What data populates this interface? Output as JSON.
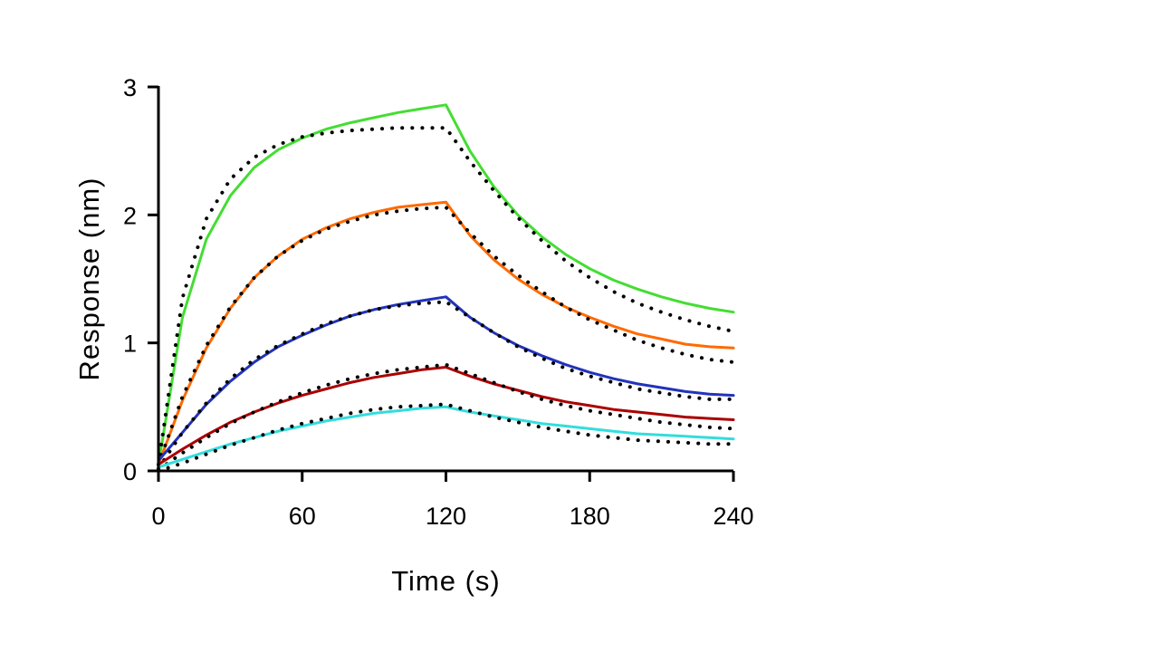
{
  "chart_data": {
    "type": "line",
    "title": "",
    "xlabel": "Time (s)",
    "ylabel": "Response (nm)",
    "xlim": [
      0,
      240
    ],
    "ylim": [
      0,
      3
    ],
    "xticks": [
      0,
      60,
      120,
      180,
      240
    ],
    "yticks": [
      0,
      1,
      2,
      3
    ],
    "xtick_labels": [
      "0",
      "60",
      "120",
      "180",
      "240"
    ],
    "ytick_labels": [
      "0",
      "1",
      "2",
      "3"
    ],
    "grid": false,
    "legend": "none",
    "x": [
      0,
      10,
      20,
      30,
      40,
      50,
      60,
      70,
      80,
      90,
      100,
      110,
      120,
      130,
      140,
      150,
      160,
      170,
      180,
      190,
      200,
      210,
      220,
      230,
      240
    ],
    "series": [
      {
        "color": "#44dd33",
        "style": "solid",
        "values": [
          0.05,
          1.2,
          1.81,
          2.15,
          2.37,
          2.51,
          2.6,
          2.67,
          2.72,
          2.76,
          2.8,
          2.83,
          2.86,
          2.5,
          2.22,
          2.0,
          1.83,
          1.69,
          1.58,
          1.49,
          1.42,
          1.36,
          1.31,
          1.27,
          1.24
        ]
      },
      {
        "color": "#000000",
        "style": "dotted",
        "values": [
          0.05,
          1.35,
          1.97,
          2.28,
          2.45,
          2.55,
          2.61,
          2.64,
          2.66,
          2.67,
          2.68,
          2.68,
          2.68,
          2.42,
          2.19,
          1.98,
          1.8,
          1.64,
          1.51,
          1.4,
          1.31,
          1.24,
          1.18,
          1.13,
          1.09
        ]
      },
      {
        "color": "#ff6a00",
        "style": "solid",
        "values": [
          0.05,
          0.55,
          0.96,
          1.27,
          1.51,
          1.68,
          1.81,
          1.9,
          1.97,
          2.02,
          2.06,
          2.08,
          2.1,
          1.84,
          1.65,
          1.5,
          1.38,
          1.28,
          1.2,
          1.13,
          1.07,
          1.03,
          0.99,
          0.97,
          0.96
        ]
      },
      {
        "color": "#000000",
        "style": "dotted",
        "values": [
          0.05,
          0.58,
          0.98,
          1.28,
          1.51,
          1.68,
          1.8,
          1.89,
          1.95,
          2.0,
          2.03,
          2.05,
          2.06,
          1.86,
          1.68,
          1.53,
          1.4,
          1.28,
          1.18,
          1.1,
          1.02,
          0.96,
          0.91,
          0.87,
          0.85
        ]
      },
      {
        "color": "#2233bb",
        "style": "solid",
        "values": [
          0.08,
          0.3,
          0.52,
          0.7,
          0.85,
          0.97,
          1.06,
          1.14,
          1.21,
          1.26,
          1.3,
          1.33,
          1.36,
          1.2,
          1.08,
          0.98,
          0.9,
          0.83,
          0.77,
          0.72,
          0.68,
          0.65,
          0.62,
          0.6,
          0.59
        ]
      },
      {
        "color": "#000000",
        "style": "dotted",
        "values": [
          0.02,
          0.3,
          0.53,
          0.72,
          0.87,
          0.98,
          1.07,
          1.15,
          1.21,
          1.26,
          1.29,
          1.31,
          1.32,
          1.2,
          1.08,
          0.97,
          0.88,
          0.8,
          0.74,
          0.69,
          0.64,
          0.61,
          0.58,
          0.56,
          0.56
        ]
      },
      {
        "color": "#aa0000",
        "style": "solid",
        "values": [
          0.05,
          0.17,
          0.28,
          0.38,
          0.46,
          0.53,
          0.59,
          0.64,
          0.69,
          0.73,
          0.76,
          0.79,
          0.81,
          0.74,
          0.68,
          0.63,
          0.58,
          0.54,
          0.51,
          0.48,
          0.46,
          0.44,
          0.42,
          0.41,
          0.4
        ]
      },
      {
        "color": "#000000",
        "style": "dotted",
        "values": [
          0.01,
          0.14,
          0.26,
          0.37,
          0.46,
          0.54,
          0.61,
          0.67,
          0.72,
          0.76,
          0.79,
          0.81,
          0.83,
          0.76,
          0.69,
          0.62,
          0.56,
          0.51,
          0.47,
          0.44,
          0.41,
          0.38,
          0.36,
          0.34,
          0.33
        ]
      },
      {
        "color": "#33dddd",
        "style": "solid",
        "values": [
          0.03,
          0.09,
          0.15,
          0.21,
          0.26,
          0.31,
          0.35,
          0.39,
          0.42,
          0.45,
          0.47,
          0.49,
          0.5,
          0.46,
          0.43,
          0.4,
          0.37,
          0.35,
          0.33,
          0.31,
          0.29,
          0.28,
          0.27,
          0.26,
          0.25
        ]
      },
      {
        "color": "#000000",
        "style": "dotted",
        "values": [
          0.0,
          0.06,
          0.13,
          0.2,
          0.26,
          0.32,
          0.37,
          0.41,
          0.45,
          0.48,
          0.5,
          0.51,
          0.52,
          0.47,
          0.42,
          0.38,
          0.34,
          0.31,
          0.28,
          0.26,
          0.24,
          0.23,
          0.22,
          0.21,
          0.21
        ]
      }
    ]
  }
}
